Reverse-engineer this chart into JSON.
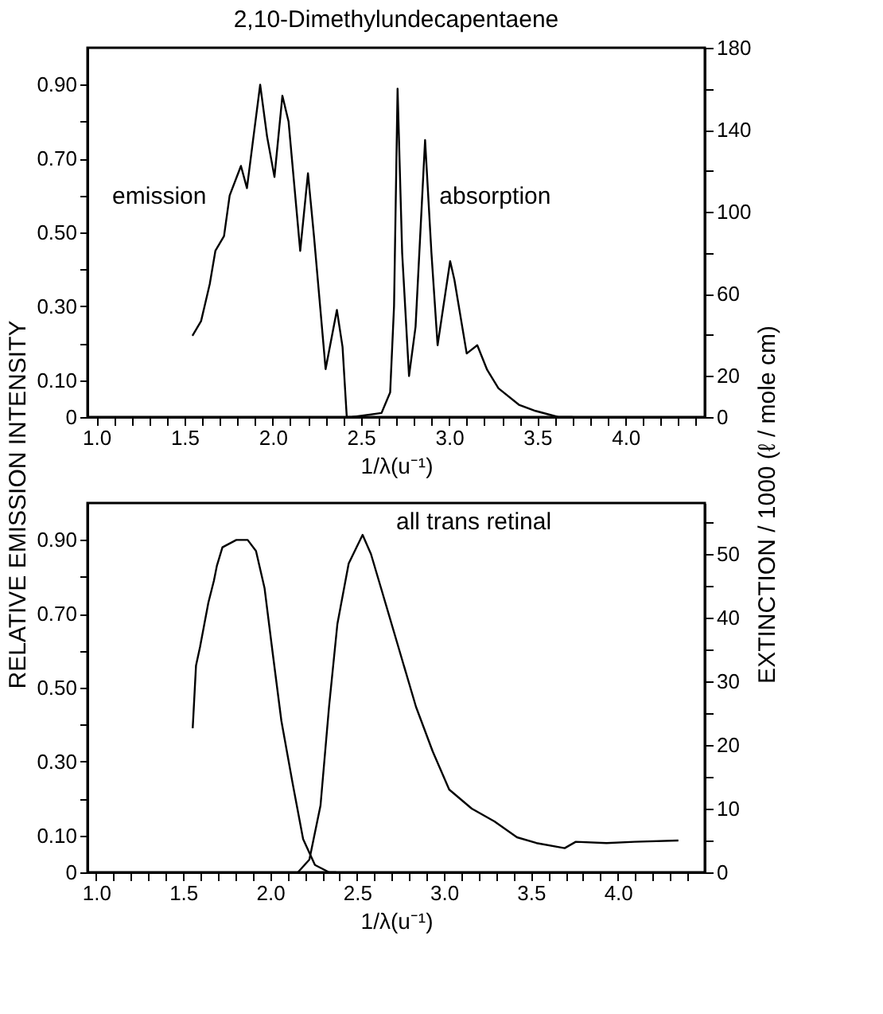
{
  "chart_data": [
    {
      "type": "line",
      "title": "2,10-Dimethylundecapentaene",
      "xlabel": "1/λ(u⁻¹)",
      "ylabel": "RELATIVE   EMISSION  INTENSITY",
      "y2label": "EXTINCTION / 1000  (ℓ / mole cm)",
      "series": [
        {
          "color": "#000000",
          "x": [
            1.545,
            1.594,
            1.643,
            1.675,
            1.724,
            1.756,
            1.82,
            1.854,
            1.886,
            1.929,
            1.968,
            2.01,
            2.055,
            2.09,
            2.156,
            2.2,
            2.234,
            2.3,
            2.364,
            2.396,
            2.42,
            2.52
          ],
          "values": [
            0.22,
            0.26,
            0.36,
            0.45,
            0.49,
            0.6,
            0.68,
            0.62,
            0.74,
            0.9,
            0.76,
            0.65,
            0.87,
            0.8,
            0.45,
            0.66,
            0.49,
            0.13,
            0.29,
            0.19,
            0.0,
            0.0
          ]
        },
        {
          "color": "#000000",
          "axis": "y2",
          "x": [
            2.45,
            2.617,
            2.666,
            2.688,
            2.708,
            2.734,
            2.773,
            2.81,
            2.864,
            2.9,
            2.935,
            3.006,
            3.03,
            3.1,
            3.16,
            3.216,
            3.28,
            3.396,
            3.49,
            3.62,
            3.7
          ],
          "values": [
            0,
            2,
            12,
            54,
            160,
            80,
            20,
            44,
            135,
            80,
            35,
            76,
            67,
            31,
            35,
            23,
            14,
            6,
            3,
            0,
            0
          ]
        }
      ],
      "annotations": [
        "emission",
        "absorption"
      ],
      "xlim": [
        0.95,
        4.45
      ],
      "xticks": [
        {
          "value": 1,
          "label": "1.0"
        },
        {
          "value": 1.1,
          "label": null
        },
        {
          "value": 1.2,
          "label": null
        },
        {
          "value": 1.3,
          "label": null
        },
        {
          "value": 1.4,
          "label": null
        },
        1.5,
        {
          "value": 1.6,
          "label": null
        },
        {
          "value": 1.7,
          "label": null
        },
        {
          "value": 1.8,
          "label": null
        },
        {
          "value": 1.9,
          "label": null
        },
        {
          "value": 2,
          "label": "2.0"
        },
        {
          "value": 2.1,
          "label": null
        },
        {
          "value": 2.2,
          "label": null
        },
        {
          "value": 2.3,
          "label": null
        },
        {
          "value": 2.4,
          "label": null
        },
        2.5,
        {
          "value": 2.6,
          "label": null
        },
        {
          "value": 2.7,
          "label": null
        },
        {
          "value": 2.8,
          "label": null
        },
        {
          "value": 2.9,
          "label": null
        },
        {
          "value": 3,
          "label": "3.0"
        },
        {
          "value": 3.1,
          "label": null
        },
        {
          "value": 3.2,
          "label": null
        },
        {
          "value": 3.3,
          "label": null
        },
        {
          "value": 3.4,
          "label": null
        },
        3.5,
        {
          "value": 3.6,
          "label": null
        },
        {
          "value": 3.7,
          "label": null
        },
        {
          "value": 3.8,
          "label": null
        },
        {
          "value": 3.9,
          "label": null
        },
        {
          "value": 4,
          "label": "4.0"
        },
        {
          "value": 4.1,
          "label": null
        },
        {
          "value": 4.2,
          "label": null
        },
        {
          "value": 4.3,
          "label": null
        },
        {
          "value": 4.4,
          "label": null
        }
      ],
      "ylim": [
        0,
        1.0
      ],
      "yticks": [
        0,
        {
          "value": 0.1,
          "label": "0.10"
        },
        {
          "value": 0.2,
          "label": null
        },
        {
          "value": 0.3,
          "label": "0.30"
        },
        {
          "value": 0.4,
          "label": null
        },
        {
          "value": 0.5,
          "label": "0.50"
        },
        {
          "value": 0.6,
          "label": null
        },
        {
          "value": 0.7,
          "label": "0.70"
        },
        {
          "value": 0.8,
          "label": null
        },
        {
          "value": 0.9,
          "label": "0.90"
        }
      ],
      "y2lim": [
        0,
        180
      ],
      "y2ticks": [
        0,
        20,
        {
          "value": 40,
          "label": null
        },
        60,
        {
          "value": 80,
          "label": null
        },
        100,
        {
          "value": 120,
          "label": null
        },
        140,
        {
          "value": 160,
          "label": null
        },
        180
      ],
      "grid": false
    },
    {
      "type": "line",
      "xlabel": "1/λ(u⁻¹)",
      "series": [
        {
          "color": "#000000",
          "x": [
            1.555,
            1.574,
            1.597,
            1.645,
            1.677,
            1.694,
            1.726,
            1.806,
            1.871,
            1.919,
            1.968,
            2.016,
            2.065,
            2.13,
            2.19,
            2.258,
            2.34,
            2.38
          ],
          "values": [
            0.39,
            0.56,
            0.61,
            0.73,
            0.79,
            0.83,
            0.88,
            0.9,
            0.9,
            0.87,
            0.77,
            0.59,
            0.41,
            0.24,
            0.09,
            0.02,
            0.0,
            0.0
          ]
        },
        {
          "color": "#000000",
          "axis": "y2",
          "x": [
            2.16,
            2.226,
            2.29,
            2.339,
            2.387,
            2.452,
            2.532,
            2.58,
            2.645,
            2.742,
            2.839,
            2.935,
            3.03,
            3.16,
            3.29,
            3.42,
            3.532,
            3.694,
            3.758,
            3.935,
            4.097,
            4.348
          ],
          "values": [
            0,
            2,
            10.5,
            26,
            39,
            48.5,
            53,
            50,
            44,
            35,
            26,
            19,
            13,
            10,
            8,
            5.5,
            4.6,
            3.8,
            4.8,
            4.6,
            4.8,
            5
          ]
        }
      ],
      "annotations": [
        "all trans retinal"
      ],
      "xlim": [
        0.95,
        4.5
      ],
      "xticks": [
        {
          "value": 1,
          "label": "1.0"
        },
        {
          "value": 1.1,
          "label": null
        },
        {
          "value": 1.2,
          "label": null
        },
        {
          "value": 1.3,
          "label": null
        },
        {
          "value": 1.4,
          "label": null
        },
        1.5,
        {
          "value": 1.6,
          "label": null
        },
        {
          "value": 1.7,
          "label": null
        },
        {
          "value": 1.8,
          "label": null
        },
        {
          "value": 1.9,
          "label": null
        },
        {
          "value": 2,
          "label": "2.0"
        },
        {
          "value": 2.1,
          "label": null
        },
        {
          "value": 2.2,
          "label": null
        },
        {
          "value": 2.3,
          "label": null
        },
        {
          "value": 2.4,
          "label": null
        },
        2.5,
        {
          "value": 2.6,
          "label": null
        },
        {
          "value": 2.7,
          "label": null
        },
        {
          "value": 2.8,
          "label": null
        },
        {
          "value": 2.9,
          "label": null
        },
        {
          "value": 3,
          "label": "3.0"
        },
        {
          "value": 3.1,
          "label": null
        },
        {
          "value": 3.2,
          "label": null
        },
        {
          "value": 3.3,
          "label": null
        },
        {
          "value": 3.4,
          "label": null
        },
        3.5,
        {
          "value": 3.6,
          "label": null
        },
        {
          "value": 3.7,
          "label": null
        },
        {
          "value": 3.8,
          "label": null
        },
        {
          "value": 3.9,
          "label": null
        },
        {
          "value": 4,
          "label": "4.0"
        },
        {
          "value": 4.1,
          "label": null
        },
        {
          "value": 4.2,
          "label": null
        },
        {
          "value": 4.3,
          "label": null
        },
        {
          "value": 4.4,
          "label": null
        }
      ],
      "ylim": [
        0,
        1.0
      ],
      "yticks": [
        0,
        {
          "value": 0.1,
          "label": "0.10"
        },
        {
          "value": 0.2,
          "label": null
        },
        {
          "value": 0.3,
          "label": "0.30"
        },
        {
          "value": 0.4,
          "label": null
        },
        {
          "value": 0.5,
          "label": "0.50"
        },
        {
          "value": 0.6,
          "label": null
        },
        {
          "value": 0.7,
          "label": "0.70"
        },
        {
          "value": 0.8,
          "label": null
        },
        {
          "value": 0.9,
          "label": "0.90"
        }
      ],
      "y2lim": [
        0,
        58
      ],
      "y2ticks": [
        0,
        {
          "value": 5,
          "label": null
        },
        10,
        {
          "value": 15,
          "label": null
        },
        20,
        {
          "value": 25,
          "label": null
        },
        30,
        {
          "value": 35,
          "label": null
        },
        40,
        {
          "value": 45,
          "label": null
        },
        50,
        {
          "value": 55,
          "label": null
        }
      ],
      "grid": false
    }
  ]
}
